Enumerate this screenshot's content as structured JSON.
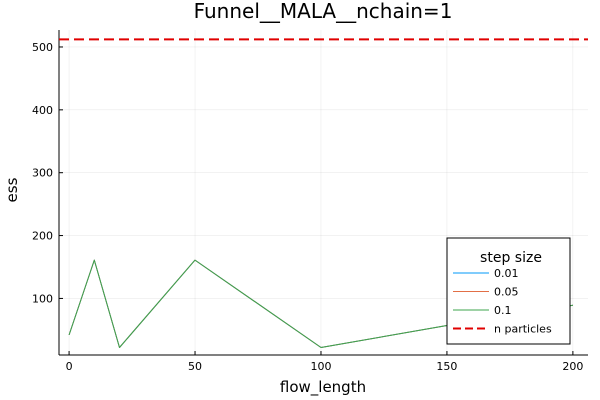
{
  "chart_data": {
    "type": "line",
    "title": "Funnel__MALA__nchain=1",
    "xlabel": "flow_length",
    "ylabel": "ess",
    "xlim": [
      -4,
      206
    ],
    "ylim": [
      10,
      527
    ],
    "xticks": [
      0,
      50,
      100,
      150,
      200
    ],
    "yticks": [
      100,
      200,
      300,
      400,
      500
    ],
    "grid": true,
    "legend_position": "bottom-right",
    "legend_title": "step size",
    "x": [
      0,
      10,
      20,
      50,
      100,
      150,
      200
    ],
    "series": [
      {
        "name": "0.01",
        "color": "#009af9",
        "values": [
          42,
          161,
          22,
          161,
          22,
          57,
          89
        ]
      },
      {
        "name": "0.05",
        "color": "#e26f46",
        "values": [
          42,
          161,
          22,
          161,
          22,
          57,
          89
        ]
      },
      {
        "name": "0.1",
        "color": "#3da44d",
        "values": [
          42,
          161,
          22,
          161,
          22,
          57,
          89
        ]
      }
    ],
    "reference_line": {
      "name": "n particles",
      "value": 512,
      "color": "#e00000",
      "style": "dashed"
    }
  }
}
